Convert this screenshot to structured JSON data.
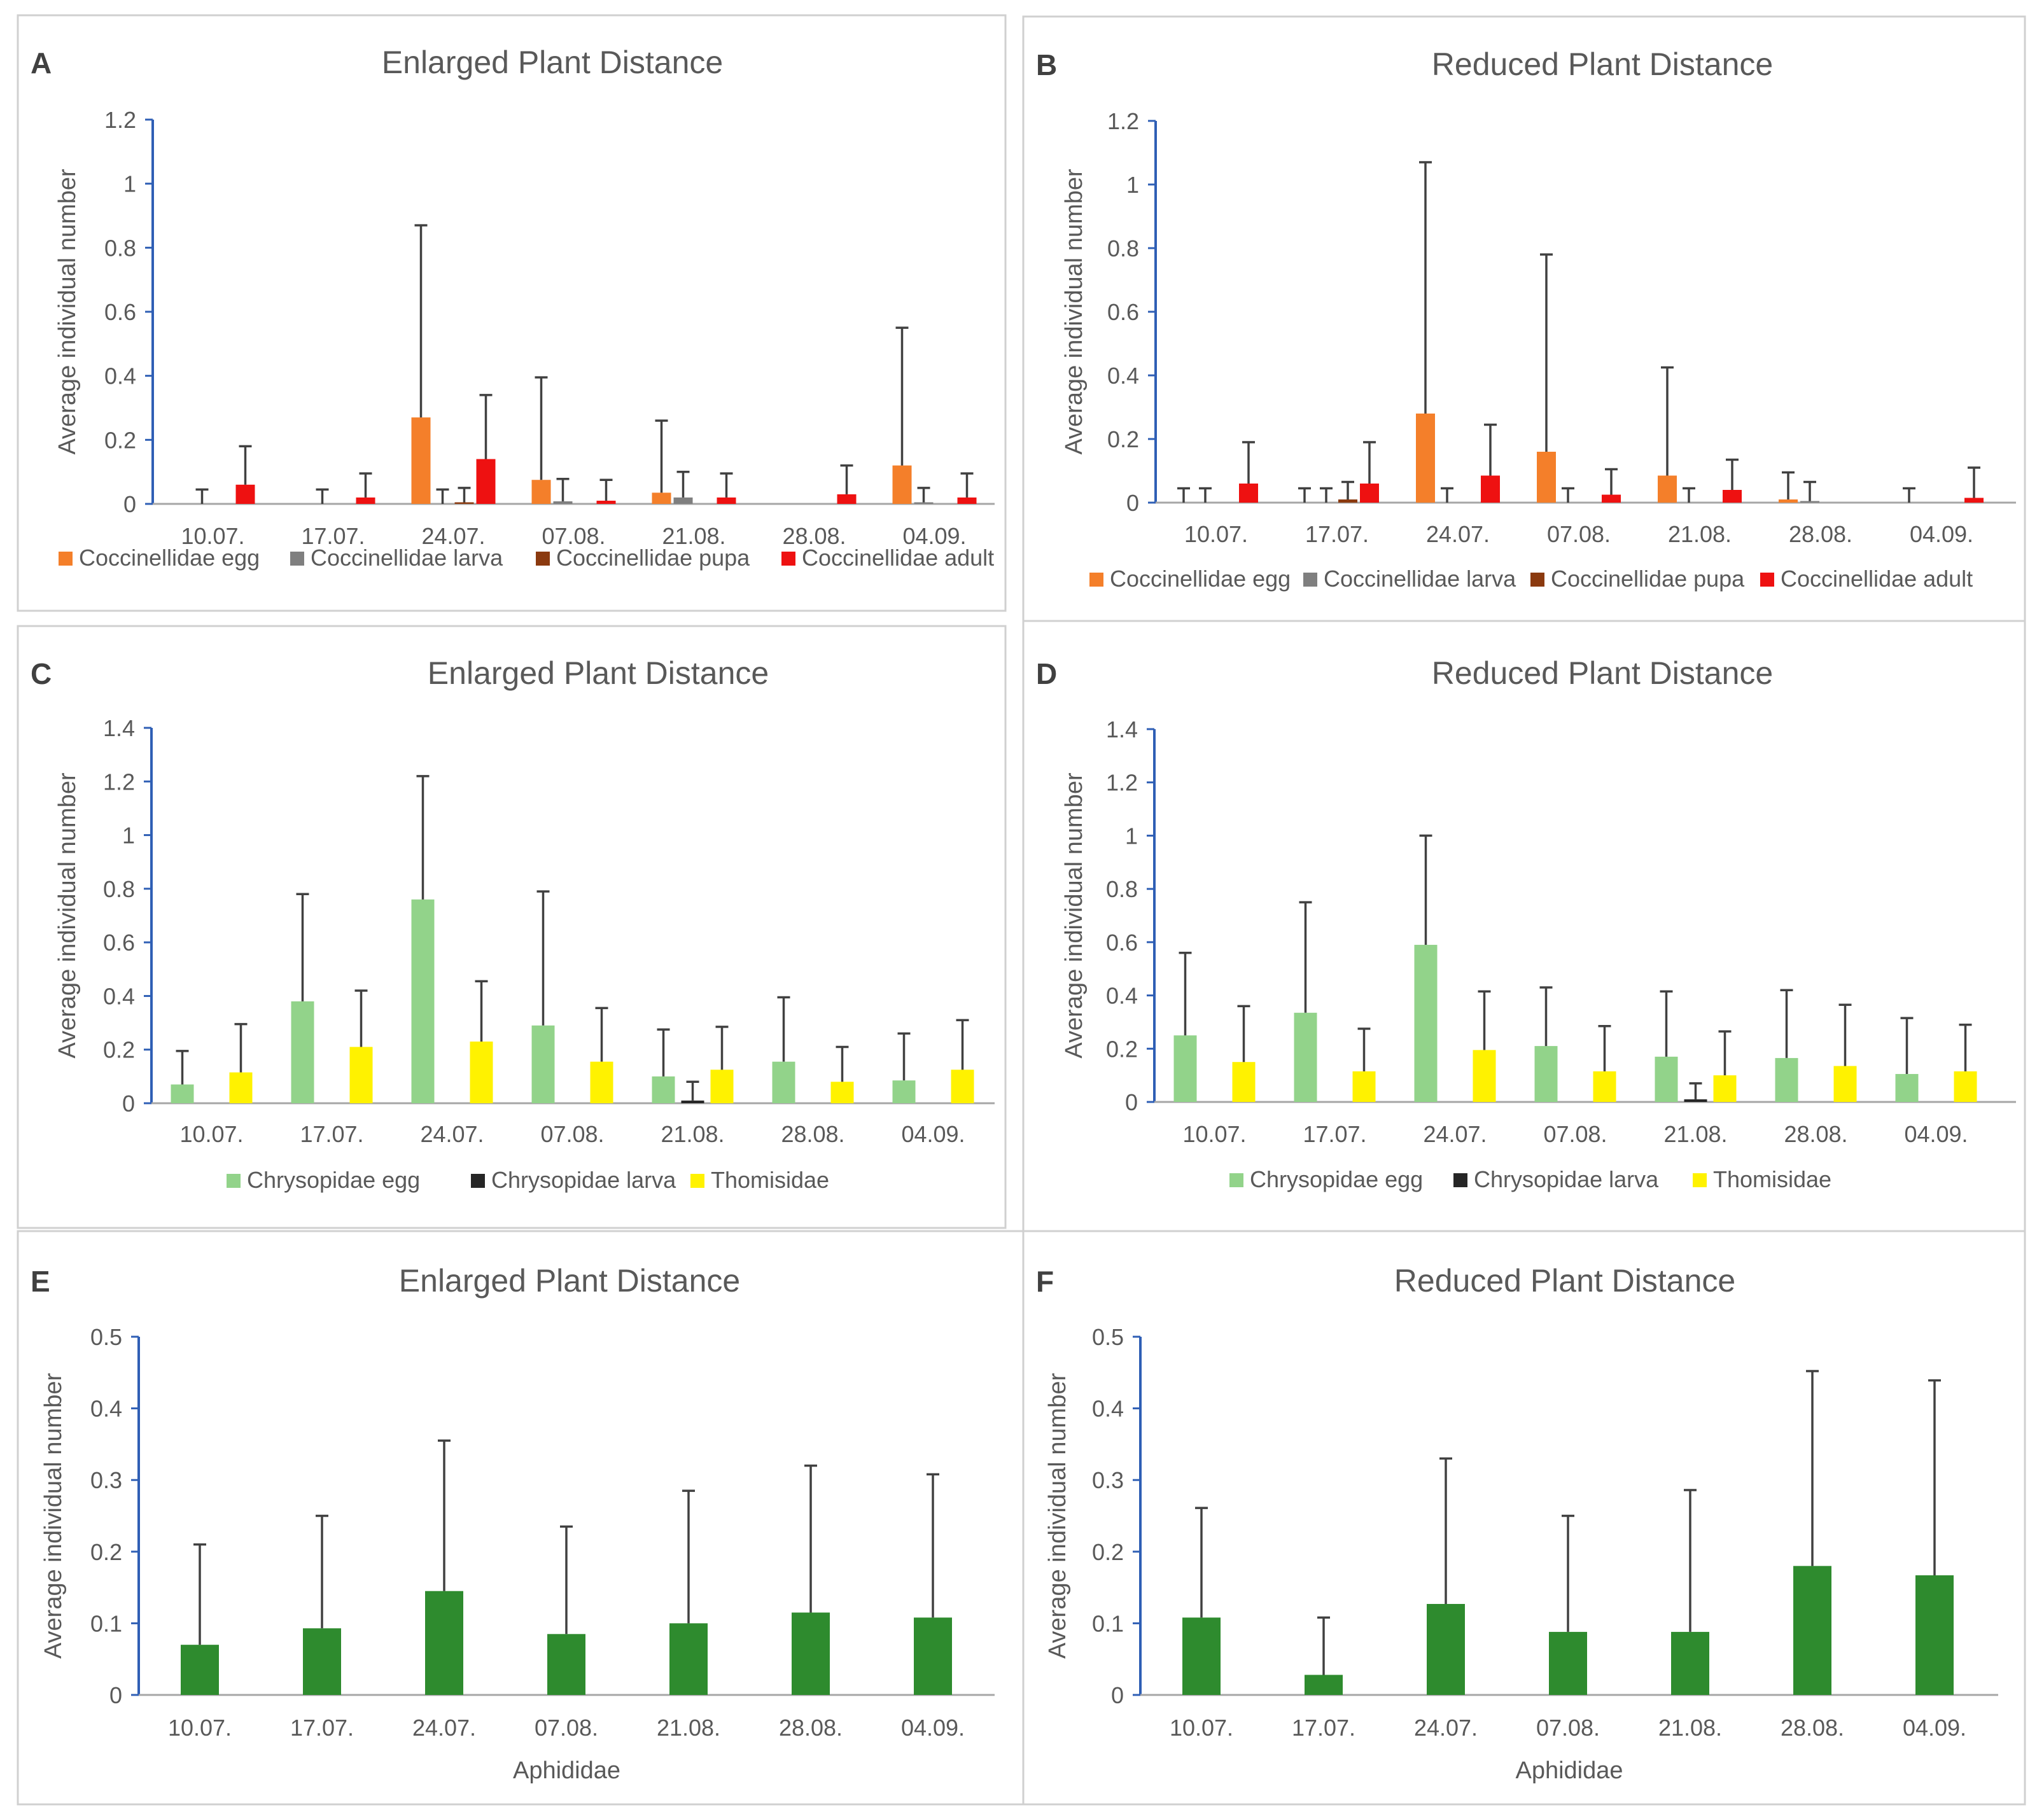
{
  "colors": {
    "coc_egg": "#F47F2A",
    "coc_larva": "#7F7F7F",
    "coc_pupa": "#8B3A0F",
    "coc_adult": "#EE1111",
    "chry_egg": "#92D38A",
    "chry_larva": "#262626",
    "thomisidae": "#FFF200",
    "aphididae": "#2E8B2E",
    "axis": "#2F5FB5",
    "error_bar": "#404040",
    "text": "#595959"
  },
  "chart_data": [
    {
      "panel": "A",
      "type": "bar",
      "title": "Enlarged Plant Distance",
      "xlabel": "",
      "ylabel": "Average individual number",
      "ylim": [
        0,
        1.2
      ],
      "yticks": [
        0,
        0.2,
        0.4,
        0.6,
        0.8,
        1,
        1.2
      ],
      "ytick_labels": [
        "0",
        "0.2",
        "0.4",
        "0.6",
        "0.8",
        "1",
        "1.2"
      ],
      "categories": [
        "10.07.",
        "17.07.",
        "24.07.",
        "07.08.",
        "21.08.",
        "28.08.",
        "04.09."
      ],
      "series": [
        {
          "name": "Coccinellidae egg",
          "color_key": "coc_egg",
          "values": [
            0,
            0,
            0.27,
            0.075,
            0.035,
            0,
            0.12
          ],
          "errors": [
            0,
            0,
            0.6,
            0.32,
            0.225,
            0,
            0.43
          ],
          "err_shown": [
            false,
            false,
            true,
            true,
            true,
            false,
            true
          ]
        },
        {
          "name": "Coccinellidae larva",
          "color_key": "coc_larva",
          "values": [
            0,
            0,
            0,
            0.008,
            0.02,
            0,
            0.005
          ],
          "errors": [
            0.045,
            0.045,
            0.045,
            0.07,
            0.08,
            0,
            0.045
          ],
          "err_shown": [
            true,
            true,
            true,
            true,
            true,
            false,
            true
          ]
        },
        {
          "name": "Coccinellidae pupa",
          "color_key": "coc_pupa",
          "values": [
            0,
            0,
            0.005,
            0,
            0,
            0,
            0
          ],
          "errors": [
            0,
            0,
            0.045,
            0,
            0,
            0,
            0
          ],
          "err_shown": [
            false,
            false,
            true,
            false,
            false,
            false,
            false
          ]
        },
        {
          "name": "Coccinellidae adult",
          "color_key": "coc_adult",
          "values": [
            0.06,
            0.02,
            0.14,
            0.01,
            0.02,
            0.03,
            0.02
          ],
          "errors": [
            0.12,
            0.075,
            0.2,
            0.065,
            0.075,
            0.09,
            0.075
          ],
          "err_shown": [
            true,
            true,
            true,
            true,
            true,
            true,
            true
          ]
        }
      ]
    },
    {
      "panel": "B",
      "type": "bar",
      "title": "Reduced Plant Distance",
      "xlabel": "",
      "ylabel": "Average individual number",
      "ylim": [
        0,
        1.2
      ],
      "yticks": [
        0,
        0.2,
        0.4,
        0.6,
        0.8,
        1,
        1.2
      ],
      "ytick_labels": [
        "0",
        "0.2",
        "0.4",
        "0.6",
        "0.8",
        "1",
        "1.2"
      ],
      "categories": [
        "10.07.",
        "17.07.",
        "24.07.",
        "07.08.",
        "21.08.",
        "28.08.",
        "04.09."
      ],
      "series": [
        {
          "name": "Coccinellidae egg",
          "color_key": "coc_egg",
          "values": [
            0,
            0,
            0.28,
            0.16,
            0.085,
            0.01,
            0
          ],
          "errors": [
            0.045,
            0.045,
            0.79,
            0.62,
            0.34,
            0.085,
            0.045
          ],
          "err_shown": [
            true,
            true,
            true,
            true,
            true,
            true,
            true
          ]
        },
        {
          "name": "Coccinellidae larva",
          "color_key": "coc_larva",
          "values": [
            0,
            0,
            0,
            0,
            0,
            0.005,
            0
          ],
          "errors": [
            0.045,
            0.045,
            0.045,
            0.045,
            0.045,
            0.06,
            0
          ],
          "err_shown": [
            true,
            true,
            true,
            true,
            true,
            true,
            false
          ]
        },
        {
          "name": "Coccinellidae pupa",
          "color_key": "coc_pupa",
          "values": [
            0,
            0.01,
            0,
            0,
            0,
            0,
            0
          ],
          "errors": [
            0,
            0.055,
            0,
            0,
            0,
            0,
            0
          ],
          "err_shown": [
            false,
            true,
            false,
            false,
            false,
            false,
            false
          ]
        },
        {
          "name": "Coccinellidae adult",
          "color_key": "coc_adult",
          "values": [
            0.06,
            0.06,
            0.085,
            0.025,
            0.04,
            0,
            0.015
          ],
          "errors": [
            0.13,
            0.13,
            0.16,
            0.08,
            0.095,
            0,
            0.095
          ],
          "err_shown": [
            true,
            true,
            true,
            true,
            true,
            false,
            true
          ]
        }
      ]
    },
    {
      "panel": "C",
      "type": "bar",
      "title": "Enlarged Plant Distance",
      "xlabel": "",
      "ylabel": "Average individual number",
      "ylim": [
        0,
        1.4
      ],
      "yticks": [
        0,
        0.2,
        0.4,
        0.6,
        0.8,
        1,
        1.2,
        1.4
      ],
      "ytick_labels": [
        "0",
        "0.2",
        "0.4",
        "0.6",
        "0.8",
        "1",
        "1.2",
        "1.4"
      ],
      "categories": [
        "10.07.",
        "17.07.",
        "24.07.",
        "07.08.",
        "21.08.",
        "28.08.",
        "04.09."
      ],
      "series": [
        {
          "name": "Chrysopidae egg",
          "color_key": "chry_egg",
          "values": [
            0.07,
            0.38,
            0.76,
            0.29,
            0.1,
            0.155,
            0.085
          ],
          "errors": [
            0.125,
            0.4,
            0.46,
            0.5,
            0.175,
            0.24,
            0.175
          ],
          "err_shown": [
            true,
            true,
            true,
            true,
            true,
            true,
            true
          ]
        },
        {
          "name": "Chrysopidae larva",
          "color_key": "chry_larva",
          "values": [
            0,
            0,
            0,
            0,
            0.01,
            0,
            0
          ],
          "errors": [
            0,
            0,
            0,
            0,
            0.07,
            0,
            0
          ],
          "err_shown": [
            false,
            false,
            false,
            false,
            true,
            false,
            false
          ]
        },
        {
          "name": "Thomisidae",
          "color_key": "thomisidae",
          "values": [
            0.115,
            0.21,
            0.23,
            0.155,
            0.125,
            0.08,
            0.125
          ],
          "errors": [
            0.18,
            0.21,
            0.225,
            0.2,
            0.16,
            0.13,
            0.185
          ],
          "err_shown": [
            true,
            true,
            true,
            true,
            true,
            true,
            true
          ]
        }
      ]
    },
    {
      "panel": "D",
      "type": "bar",
      "title": "Reduced Plant Distance",
      "xlabel": "",
      "ylabel": "Average individual number",
      "ylim": [
        0,
        1.4
      ],
      "yticks": [
        0,
        0.2,
        0.4,
        0.6,
        0.8,
        1,
        1.2,
        1.4
      ],
      "ytick_labels": [
        "0",
        "0.2",
        "0.4",
        "0.6",
        "0.8",
        "1",
        "1.2",
        "1.4"
      ],
      "categories": [
        "10.07.",
        "17.07.",
        "24.07.",
        "07.08.",
        "21.08.",
        "28.08.",
        "04.09."
      ],
      "series": [
        {
          "name": "Chrysopidae egg",
          "color_key": "chry_egg",
          "values": [
            0.25,
            0.335,
            0.59,
            0.21,
            0.17,
            0.165,
            0.105
          ],
          "errors": [
            0.31,
            0.415,
            0.41,
            0.22,
            0.245,
            0.255,
            0.21
          ],
          "err_shown": [
            true,
            true,
            true,
            true,
            true,
            true,
            true
          ]
        },
        {
          "name": "Chrysopidae larva",
          "color_key": "chry_larva",
          "values": [
            0,
            0,
            0,
            0,
            0.01,
            0,
            0
          ],
          "errors": [
            0,
            0,
            0,
            0,
            0.06,
            0,
            0
          ],
          "err_shown": [
            false,
            false,
            false,
            false,
            true,
            false,
            false
          ]
        },
        {
          "name": "Thomisidae",
          "color_key": "thomisidae",
          "values": [
            0.15,
            0.115,
            0.195,
            0.115,
            0.1,
            0.135,
            0.115
          ],
          "errors": [
            0.21,
            0.16,
            0.22,
            0.17,
            0.165,
            0.23,
            0.175
          ],
          "err_shown": [
            true,
            true,
            true,
            true,
            true,
            true,
            true
          ]
        }
      ]
    },
    {
      "panel": "E",
      "type": "bar",
      "title": "Enlarged Plant Distance",
      "xlabel": "Aphididae",
      "ylabel": "Average individual number",
      "ylim": [
        0,
        0.5
      ],
      "yticks": [
        0,
        0.1,
        0.2,
        0.3,
        0.4,
        0.5
      ],
      "ytick_labels": [
        "0",
        "0.1",
        "0.2",
        "0.3",
        "0.4",
        "0.5"
      ],
      "categories": [
        "10.07.",
        "17.07.",
        "24.07.",
        "07.08.",
        "21.08.",
        "28.08.",
        "04.09."
      ],
      "series": [
        {
          "name": "Aphididae",
          "color_key": "aphididae",
          "values": [
            0.07,
            0.093,
            0.145,
            0.085,
            0.1,
            0.115,
            0.108
          ],
          "errors": [
            0.14,
            0.157,
            0.21,
            0.15,
            0.185,
            0.205,
            0.2
          ],
          "err_shown": [
            true,
            true,
            true,
            true,
            true,
            true,
            true
          ]
        }
      ]
    },
    {
      "panel": "F",
      "type": "bar",
      "title": "Reduced Plant Distance",
      "xlabel": "Aphididae",
      "ylabel": "Average individual number",
      "ylim": [
        0,
        0.5
      ],
      "yticks": [
        0,
        0.1,
        0.2,
        0.3,
        0.4,
        0.5
      ],
      "ytick_labels": [
        "0",
        "0.1",
        "0.2",
        "0.3",
        "0.4",
        "0.5"
      ],
      "categories": [
        "10.07.",
        "17.07.",
        "24.07.",
        "07.08.",
        "21.08.",
        "28.08.",
        "04.09."
      ],
      "series": [
        {
          "name": "Aphididae",
          "color_key": "aphididae",
          "values": [
            0.108,
            0.028,
            0.127,
            0.088,
            0.088,
            0.18,
            0.167
          ],
          "errors": [
            0.153,
            0.08,
            0.203,
            0.162,
            0.198,
            0.272,
            0.272
          ],
          "err_shown": [
            true,
            true,
            true,
            true,
            true,
            true,
            true
          ]
        }
      ]
    }
  ]
}
